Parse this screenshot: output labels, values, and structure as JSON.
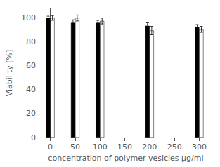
{
  "chart_data": {
    "type": "bar",
    "xlabel": "concentration of polymer vesicles µg/ml",
    "ylabel": "Viability [%]",
    "x": [
      0,
      50,
      100,
      200,
      300
    ],
    "series": [
      {
        "color": "#000000",
        "values": [
          100,
          96,
          96,
          93.5,
          92.5
        ],
        "errors": [
          1.5,
          2.5,
          2.0,
          2.5,
          2.0
        ]
      },
      {
        "color": "#ffffff",
        "values": [
          100,
          100,
          97.5,
          89.5,
          90.5
        ],
        "errors": [
          2.0,
          2.5,
          2.5,
          3.5,
          2.5
        ]
      }
    ],
    "edge_color": "#000000",
    "xlim": [
      -18,
      322
    ],
    "xticks": [
      0,
      50,
      100,
      150,
      200,
      250,
      300
    ],
    "ylim": [
      0,
      108
    ],
    "yticks": [
      0,
      20,
      40,
      60,
      80,
      100
    ],
    "grid": false
  }
}
